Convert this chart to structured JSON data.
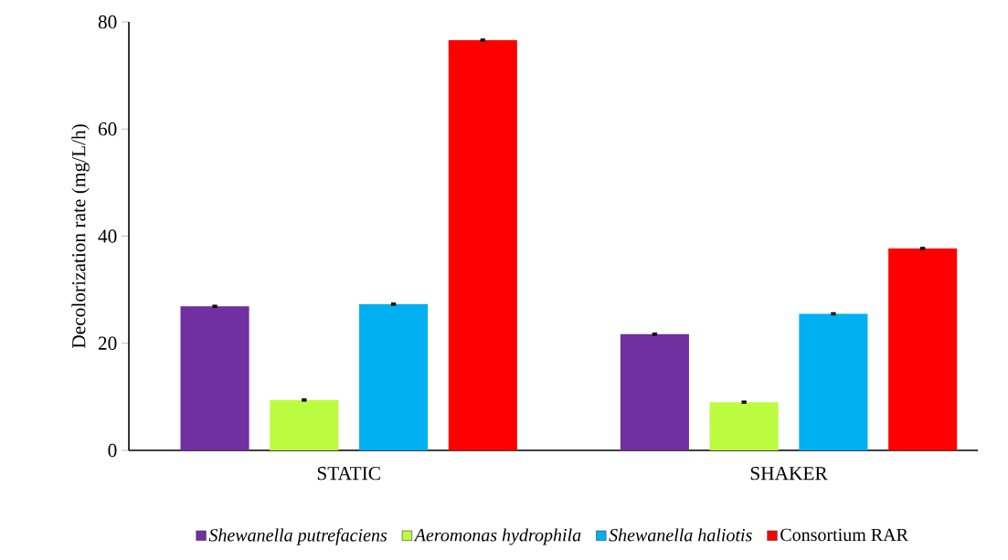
{
  "chart_data": {
    "type": "bar",
    "ylabel": "Decolorization rate (mg/L/h)",
    "categories": [
      "STATIC",
      "SHAKER"
    ],
    "series": [
      {
        "name": "*Shewanella putrefaciens*",
        "color": "#7030a0",
        "values": [
          26.9,
          21.7
        ],
        "errors": [
          0.3,
          0.3
        ]
      },
      {
        "name": "*Aeromonas hydrophila*",
        "color": "#bcfc40",
        "values": [
          9.4,
          9.0
        ],
        "errors": [
          0.3,
          0.3
        ]
      },
      {
        "name": "*Shewanella haliotis*",
        "color": "#00b0f0",
        "values": [
          27.3,
          25.5
        ],
        "errors": [
          0.3,
          0.3
        ]
      },
      {
        "name": "Consortium RAR",
        "color": "#ff0000",
        "values": [
          76.6,
          37.7
        ],
        "errors": [
          0.3,
          0.3
        ]
      }
    ],
    "ylim": [
      0,
      80
    ],
    "yticks": [
      0,
      20,
      40,
      60,
      80
    ],
    "grid": false,
    "legend": "bottom"
  }
}
